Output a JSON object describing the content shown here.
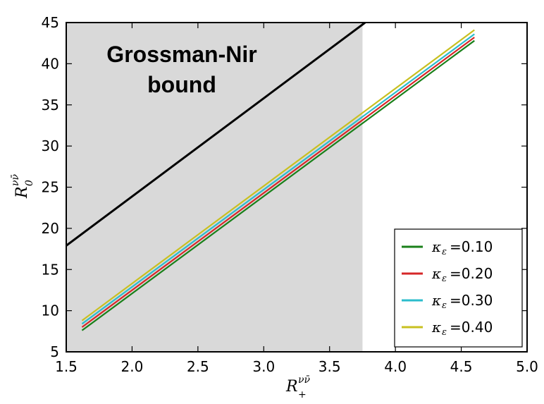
{
  "chart_data": {
    "type": "line",
    "xlabel": {
      "base": "R",
      "sup": "νν̄",
      "sub": "+"
    },
    "ylabel": {
      "base": "R",
      "sup": "νν̄",
      "sub": "0"
    },
    "xlim": [
      1.5,
      5.0
    ],
    "ylim": [
      5,
      45
    ],
    "xticks": [
      "1.5",
      "2.0",
      "2.5",
      "3.0",
      "3.5",
      "4.0",
      "4.5",
      "5.0"
    ],
    "yticks": [
      "5",
      "10",
      "15",
      "20",
      "25",
      "30",
      "35",
      "40",
      "45"
    ],
    "xtick_values": [
      1.5,
      2.0,
      2.5,
      3.0,
      3.5,
      4.0,
      4.5,
      5.0
    ],
    "ytick_values": [
      5,
      10,
      15,
      20,
      25,
      30,
      35,
      40,
      45
    ],
    "shaded_region": {
      "x": [
        1.5,
        3.75
      ],
      "color": "#d9d9d9"
    },
    "bound_line": {
      "x": [
        1.5,
        3.77
      ],
      "y": [
        17.9,
        45.0
      ],
      "color": "#000000"
    },
    "annotation": {
      "lines": [
        "Grossman-Nir",
        "bound"
      ],
      "x": 2.45,
      "y": 40.3
    },
    "series": [
      {
        "name": "=0.10",
        "kappa_sub": "ε",
        "color": "#1a801a",
        "x": [
          1.62,
          4.6
        ],
        "y": [
          7.6,
          42.8
        ]
      },
      {
        "name": "=0.20",
        "kappa_sub": "ε",
        "color": "#d62728",
        "x": [
          1.62,
          4.6
        ],
        "y": [
          8.0,
          43.2
        ]
      },
      {
        "name": "=0.30",
        "kappa_sub": "ε",
        "color": "#2cbccc",
        "x": [
          1.62,
          4.6
        ],
        "y": [
          8.4,
          43.6
        ]
      },
      {
        "name": "=0.40",
        "kappa_sub": "ε",
        "color": "#c8c020",
        "x": [
          1.62,
          4.6
        ],
        "y": [
          8.8,
          44.1
        ]
      }
    ],
    "legend": {
      "placement": "lower-right",
      "kappa_symbol": "κ"
    },
    "grid": false
  }
}
